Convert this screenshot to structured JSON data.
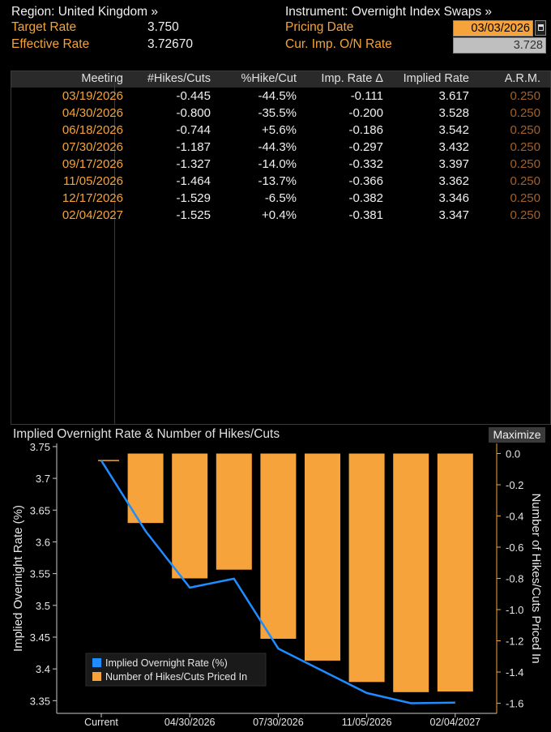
{
  "header": {
    "region_label": "Region: United Kingdom »",
    "instrument_label": "Instrument: Overnight Index Swaps »",
    "target_rate_label": "Target Rate",
    "target_rate_value": "3.750",
    "effective_rate_label": "Effective Rate",
    "effective_rate_value": "3.72670",
    "pricing_date_label": "Pricing Date",
    "pricing_date_value": "03/03/2026",
    "cur_imp_label": "Cur. Imp. O/N Rate",
    "cur_imp_value": "3.728"
  },
  "table": {
    "columns": [
      "Meeting",
      "#Hikes/Cuts",
      "%Hike/Cut",
      "Imp. Rate Δ",
      "Implied Rate",
      "A.R.M."
    ],
    "rows": [
      [
        "03/19/2026",
        "-0.445",
        "-44.5%",
        "-0.111",
        "3.617",
        "0.250"
      ],
      [
        "04/30/2026",
        "-0.800",
        "-35.5%",
        "-0.200",
        "3.528",
        "0.250"
      ],
      [
        "06/18/2026",
        "-0.744",
        "+5.6%",
        "-0.186",
        "3.542",
        "0.250"
      ],
      [
        "07/30/2026",
        "-1.187",
        "-44.3%",
        "-0.297",
        "3.432",
        "0.250"
      ],
      [
        "09/17/2026",
        "-1.327",
        "-14.0%",
        "-0.332",
        "3.397",
        "0.250"
      ],
      [
        "11/05/2026",
        "-1.464",
        "-13.7%",
        "-0.366",
        "3.362",
        "0.250"
      ],
      [
        "12/17/2026",
        "-1.529",
        "-6.5%",
        "-0.382",
        "3.346",
        "0.250"
      ],
      [
        "02/04/2027",
        "-1.525",
        "+0.4%",
        "-0.381",
        "3.347",
        "0.250"
      ]
    ]
  },
  "chart_panel": {
    "title": "Implied Overnight Rate & Number of Hikes/Cuts",
    "maximize_label": "Maximize"
  },
  "chart_data": {
    "type": "bar",
    "categories": [
      "Current",
      "03/19/2026",
      "04/30/2026",
      "06/18/2026",
      "07/30/2026",
      "09/17/2026",
      "11/05/2026",
      "12/17/2026",
      "02/04/2027"
    ],
    "x_tick_labels": [
      "Current",
      "04/30/2026",
      "07/30/2026",
      "11/05/2026",
      "02/04/2027"
    ],
    "series": [
      {
        "name": "Implied Overnight Rate (%)",
        "type": "line",
        "axis": "left",
        "color": "#1f8cff",
        "values": [
          3.728,
          3.617,
          3.528,
          3.542,
          3.432,
          3.397,
          3.362,
          3.346,
          3.347
        ]
      },
      {
        "name": "Number of Hikes/Cuts Priced In",
        "type": "bar",
        "axis": "right",
        "color": "#f5a33a",
        "values": [
          null,
          -0.445,
          -0.8,
          -0.744,
          -1.187,
          -1.327,
          -1.464,
          -1.529,
          -1.525
        ]
      }
    ],
    "y_left": {
      "label": "Implied Overnight Rate (%)",
      "lim": [
        3.33,
        3.755
      ],
      "ticks": [
        3.75,
        3.7,
        3.65,
        3.6,
        3.55,
        3.5,
        3.45,
        3.4,
        3.35
      ],
      "tick_labels": [
        "3.75",
        "3.7",
        "3.65",
        "3.6",
        "3.55",
        "3.5",
        "3.45",
        "3.4",
        "3.35"
      ]
    },
    "y_right": {
      "label": "Number of Hikes/Cuts Priced In",
      "lim": [
        -1.665,
        0.065
      ],
      "ticks": [
        0.0,
        -0.2,
        -0.4,
        -0.6,
        -0.8,
        -1.0,
        -1.2,
        -1.4,
        -1.6
      ],
      "tick_labels": [
        "0.0",
        "-0.2",
        "-0.4",
        "-0.6",
        "-0.8",
        "-1.0",
        "-1.2",
        "-1.4",
        "-1.6"
      ]
    },
    "legend_position": "bottom-left",
    "grid": false
  }
}
